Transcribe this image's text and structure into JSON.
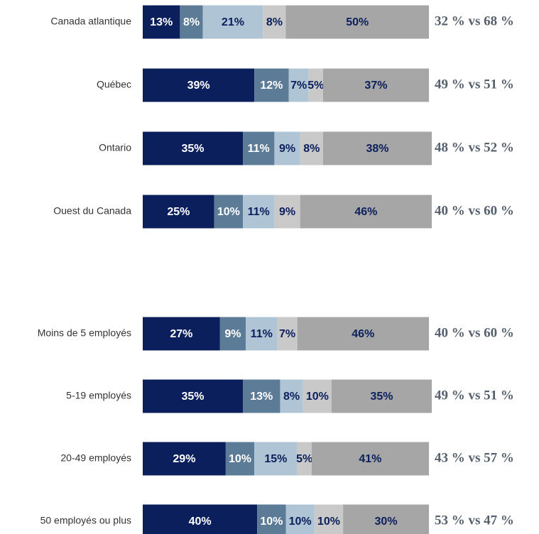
{
  "chart_data": {
    "type": "stacked-barh",
    "categories": [
      "Canada atlantique",
      "Québec",
      "Ontario",
      "Ouest du Canada",
      "Moins de 5 employés",
      "5-19 employés",
      "20-49 employés",
      "50 employés ou plus"
    ],
    "xlim": [
      0,
      100
    ],
    "series": [
      {
        "color": "#0b1f5c",
        "label_color": "#ffffff",
        "values": [
          13,
          39,
          35,
          25,
          27,
          35,
          29,
          40
        ],
        "value_labels": [
          "13%",
          "39%",
          "35%",
          "25%",
          "27%",
          "35%",
          "29%",
          "40%"
        ]
      },
      {
        "color": "#5b7b97",
        "label_color": "#ffffff",
        "values": [
          8,
          12,
          11,
          10,
          9,
          13,
          10,
          10
        ],
        "value_labels": [
          "8%",
          "12%",
          "11%",
          "10%",
          "9%",
          "13%",
          "10%",
          "10%"
        ]
      },
      {
        "color": "#afc5d5",
        "label_color": "#0b1f5c",
        "values": [
          21,
          7,
          9,
          11,
          11,
          8,
          15,
          10
        ],
        "value_labels": [
          "21%",
          "7%",
          "9%",
          "11%",
          "11%",
          "8%",
          "15%",
          "10%"
        ]
      },
      {
        "color": "#c9c9c9",
        "label_color": "#0b1f5c",
        "values": [
          8,
          5,
          8,
          9,
          7,
          10,
          5,
          10
        ],
        "value_labels": [
          "8%",
          "5%",
          "8%",
          "9%",
          "7%",
          "10%",
          "5%",
          "10%"
        ]
      },
      {
        "color": "#a6a6a6",
        "label_color": "#0b1f5c",
        "values": [
          50,
          37,
          38,
          46,
          46,
          35,
          41,
          30
        ],
        "value_labels": [
          "50%",
          "37%",
          "38%",
          "46%",
          "46%",
          "35%",
          "41%",
          "30%"
        ]
      }
    ],
    "comparisons": [
      "32 % vs 68 %",
      "49 % vs 51 %",
      "48 % vs 52 %",
      "40 % vs 60 %",
      "40 % vs 60 %",
      "49 % vs 51 %",
      "43 % vs 57 %",
      "53 % vs 47 %"
    ]
  }
}
